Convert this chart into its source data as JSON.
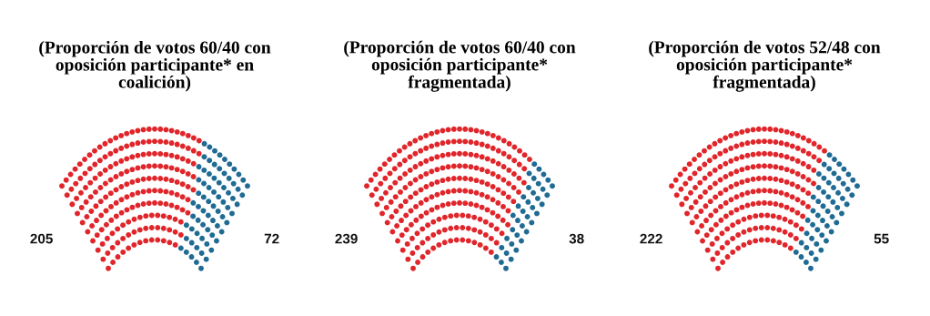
{
  "chart_data": [
    {
      "type": "other",
      "title": "(Proporción de votos 60/40 con\noposición participante* en\ncoalición)",
      "categories": [
        null,
        null
      ],
      "values": [
        205,
        72
      ],
      "colors": [
        "#e0262b",
        "#1f6b94"
      ],
      "data_labels": true
    },
    {
      "type": "other",
      "title": "(Proporción de votos 60/40 con\noposición participante*\nfragmentada)",
      "categories": [
        null,
        null
      ],
      "values": [
        239,
        38
      ],
      "colors": [
        "#e0262b",
        "#1f6b94"
      ],
      "data_labels": true
    },
    {
      "type": "other",
      "title": "(Proporción de votos 52/48 con\noposición participante*\nfragmentada)",
      "categories": [
        null,
        null
      ],
      "values": [
        222,
        55
      ],
      "colors": [
        "#e0262b",
        "#1f6b94"
      ],
      "data_labels": true
    }
  ]
}
